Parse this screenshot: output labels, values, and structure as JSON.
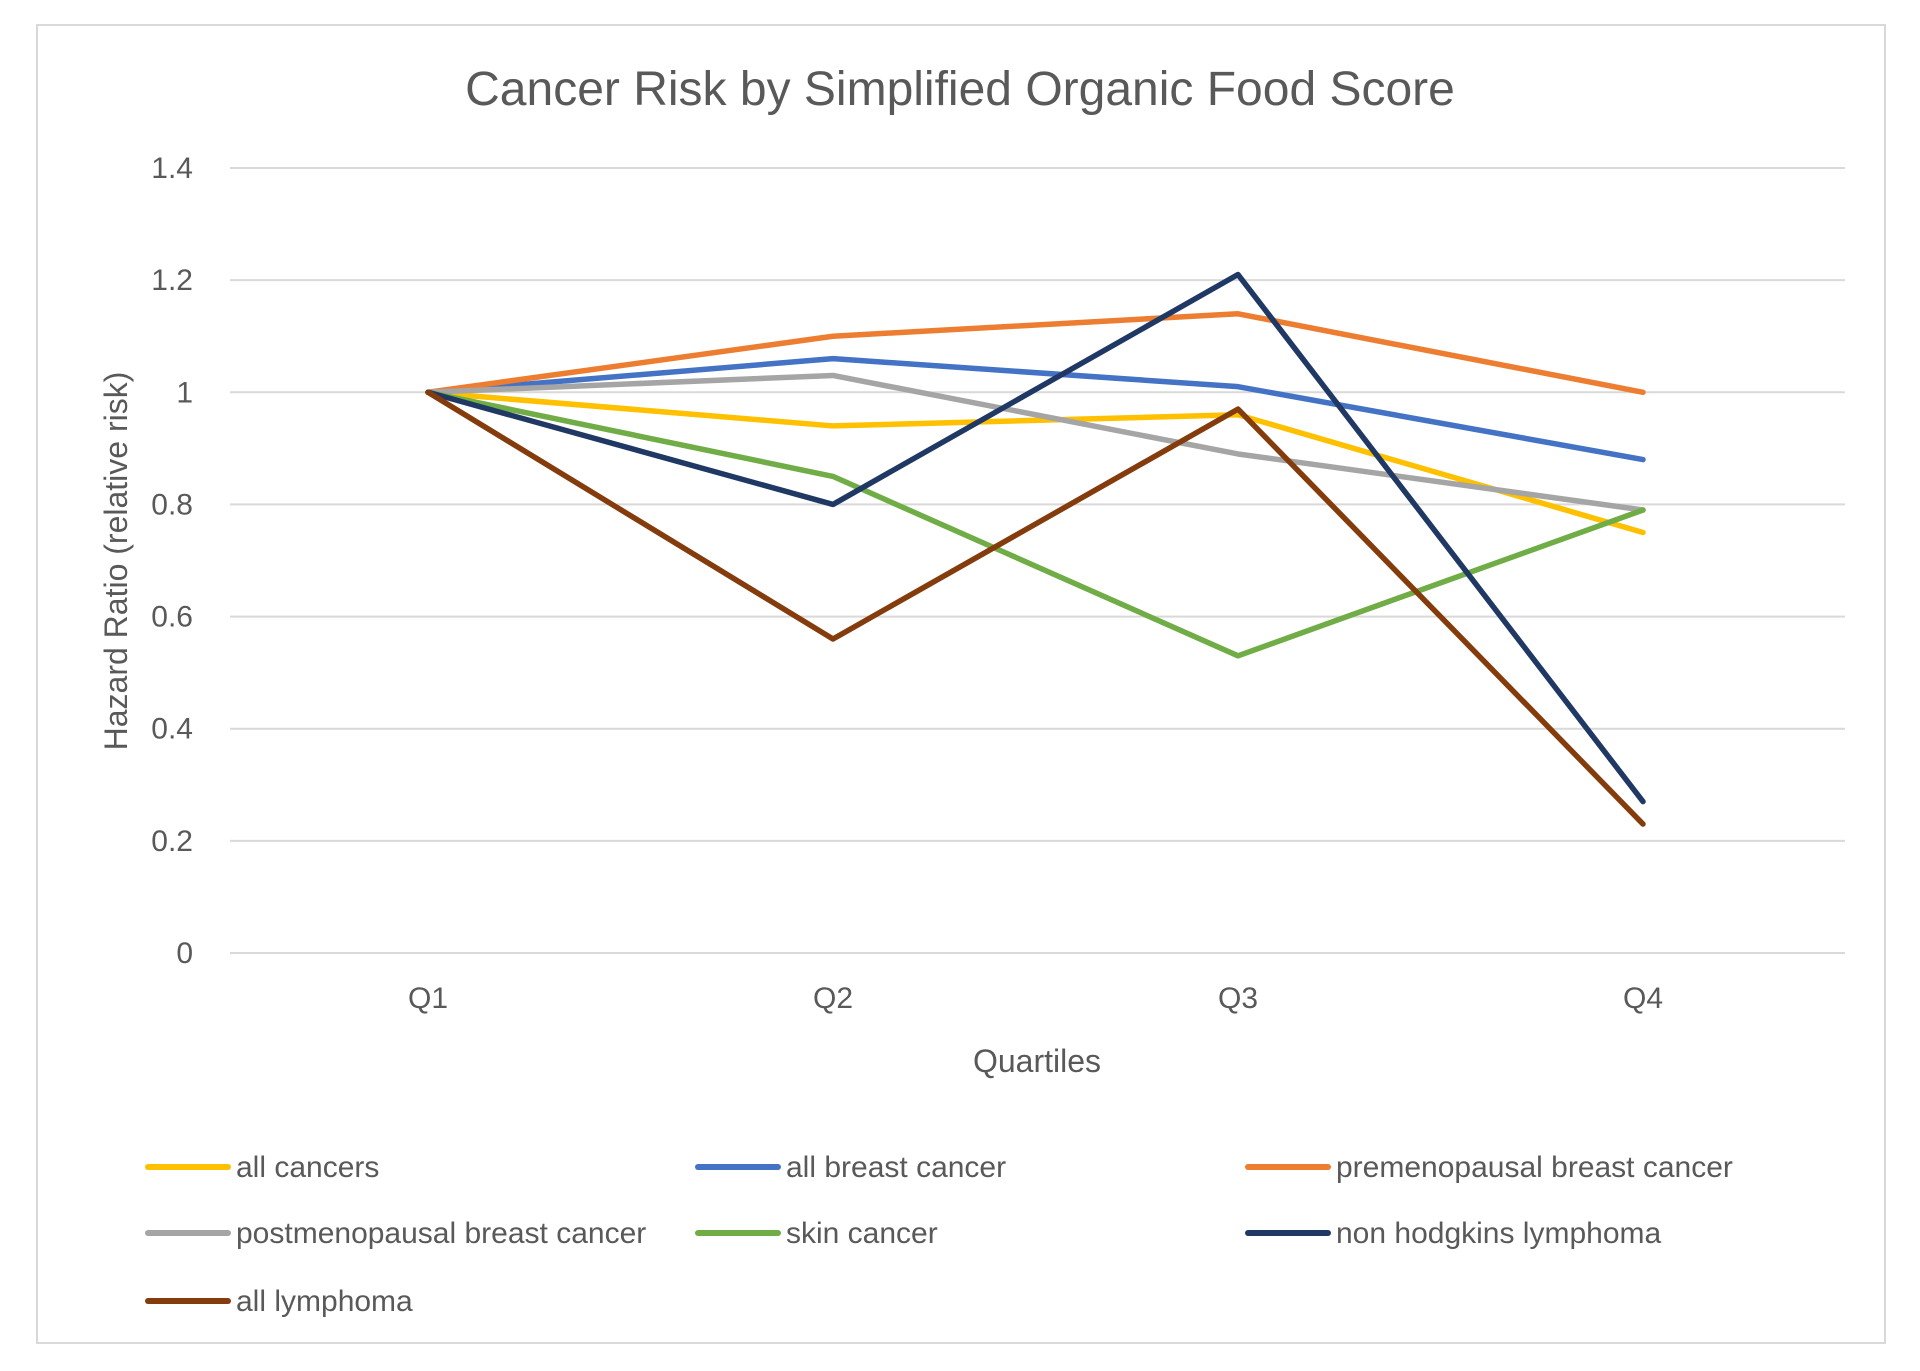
{
  "chart_data": {
    "type": "line",
    "title": "Cancer Risk by Simplified Organic Food Score",
    "xlabel": "Quartiles",
    "ylabel": "Hazard Ratio (relative risk)",
    "categories": [
      "Q1",
      "Q2",
      "Q3",
      "Q4"
    ],
    "ylim": [
      0,
      1.4
    ],
    "yticks": [
      0,
      0.2,
      0.4,
      0.6,
      0.8,
      1,
      1.2,
      1.4
    ],
    "ytick_labels": [
      "0",
      "0.2",
      "0.4",
      "0.6",
      "0.8",
      "1",
      "1.2",
      "1.4"
    ],
    "grid": true,
    "legend_position": "bottom",
    "series": [
      {
        "name": "all cancers",
        "color": "#FFC000",
        "values": [
          1.0,
          0.94,
          0.96,
          0.75
        ]
      },
      {
        "name": "all breast cancer",
        "color": "#4472C4",
        "values": [
          1.0,
          1.06,
          1.01,
          0.88
        ]
      },
      {
        "name": "premenopausal breast cancer",
        "color": "#ED7D31",
        "values": [
          1.0,
          1.1,
          1.14,
          1.0
        ]
      },
      {
        "name": "postmenopausal breast cancer",
        "color": "#A5A5A5",
        "values": [
          1.0,
          1.03,
          0.89,
          0.79
        ]
      },
      {
        "name": "skin cancer",
        "color": "#70AD47",
        "values": [
          1.0,
          0.85,
          0.53,
          0.79
        ]
      },
      {
        "name": "non hodgkins lymphoma",
        "color": "#203864",
        "values": [
          1.0,
          0.8,
          1.21,
          0.27
        ]
      },
      {
        "name": "all lymphoma",
        "color": "#843C0C",
        "values": [
          1.0,
          0.56,
          0.97,
          0.23
        ]
      }
    ]
  }
}
